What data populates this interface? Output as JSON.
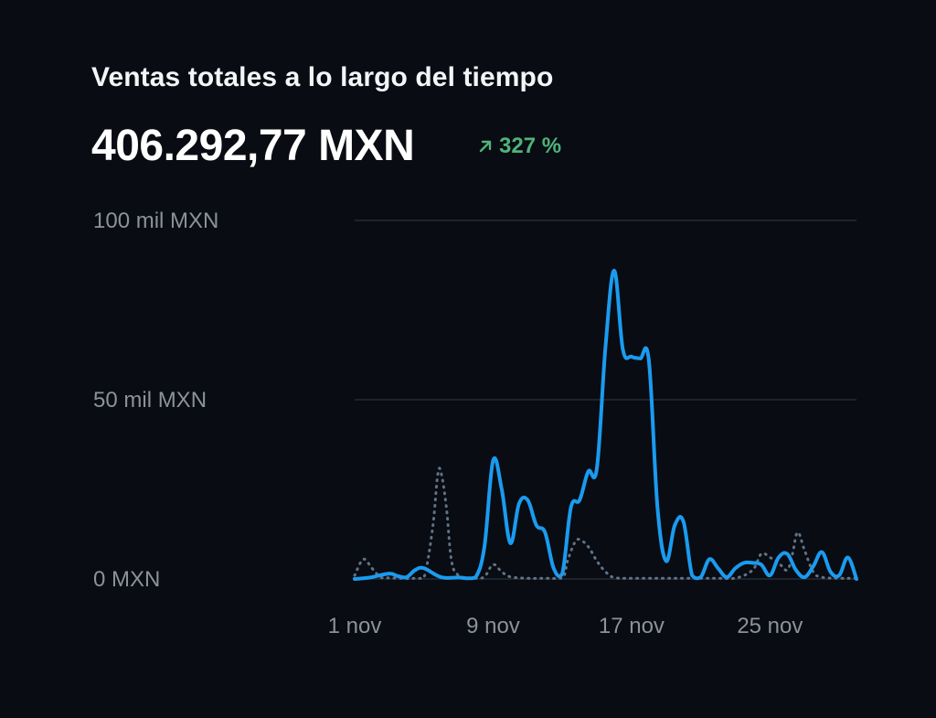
{
  "header": {
    "title": "Ventas totales a lo largo del tiempo",
    "total": "406.292,77 MXN",
    "change": "327 %"
  },
  "colors": {
    "current": "#1a9bf0",
    "previous": "#5f7387",
    "positive": "#4fb37a",
    "grid": "#262b34"
  },
  "chart_data": {
    "type": "line",
    "title": "Ventas totales a lo largo del tiempo",
    "x_labels": [
      "1 nov",
      "9 nov",
      "17 nov",
      "25 nov"
    ],
    "x_label_days": [
      1,
      9,
      17,
      25
    ],
    "x_domain": [
      1,
      30
    ],
    "ylim": [
      0,
      100000
    ],
    "y_ticks": [
      0,
      50000,
      100000
    ],
    "y_tick_labels": [
      "0 MXN",
      "50 mil MXN",
      "100 mil MXN"
    ],
    "legend": "none",
    "grid": true,
    "series": [
      {
        "style": "solid",
        "x": [
          1,
          1.5,
          2,
          3,
          3.5,
          4,
          4.5,
          5,
          6,
          7,
          7.5,
          8,
          8.5,
          9,
          9.5,
          10,
          10.5,
          11,
          11.5,
          12,
          12.5,
          13,
          13.5,
          14,
          14.5,
          15,
          15.5,
          16,
          16.5,
          17,
          17.5,
          18,
          18.5,
          19,
          19.5,
          20,
          20.5,
          21,
          21.5,
          22,
          22.5,
          23,
          23.5,
          24,
          24.5,
          25,
          25.5,
          26,
          26.5,
          27,
          27.5,
          28,
          28.5,
          29,
          29.5,
          30
        ],
        "y": [
          0,
          200,
          500,
          1500,
          800,
          500,
          2500,
          3000,
          500,
          400,
          200,
          500,
          9000,
          33000,
          25000,
          10000,
          21000,
          22000,
          15000,
          13000,
          3000,
          1500,
          20000,
          22000,
          30000,
          31000,
          65000,
          86000,
          64000,
          62000,
          61500,
          61000,
          20000,
          5000,
          15000,
          16000,
          1000,
          500,
          5500,
          3000,
          500,
          3000,
          4500,
          4500,
          4000,
          1000,
          6000,
          7000,
          2500,
          500,
          3500,
          7500,
          2000,
          1000,
          6000,
          0
        ]
      },
      {
        "style": "dotted",
        "x": [
          1,
          1.5,
          2,
          2.5,
          3,
          3.5,
          4,
          4.5,
          5,
          5.5,
          5.8,
          6,
          6.3,
          6.6,
          7,
          7.5,
          8,
          8.5,
          9,
          9.5,
          10,
          11,
          12,
          13,
          13.3,
          13.7,
          14,
          14.5,
          15,
          15.5,
          16,
          17,
          18,
          19,
          20,
          21,
          22,
          23,
          24,
          24.5,
          25,
          25.5,
          26,
          26.3,
          26.6,
          27,
          27.5,
          28,
          29,
          30
        ],
        "y": [
          1000,
          5500,
          3000,
          500,
          300,
          200,
          100,
          200,
          300,
          14000,
          29000,
          29500,
          20000,
          5000,
          1000,
          400,
          200,
          600,
          4000,
          2000,
          600,
          200,
          200,
          300,
          5000,
          10000,
          11000,
          9000,
          5000,
          2000,
          400,
          200,
          200,
          200,
          200,
          200,
          200,
          200,
          2500,
          7000,
          6000,
          4500,
          2500,
          7000,
          13000,
          8000,
          2000,
          500,
          200,
          200
        ]
      }
    ]
  }
}
